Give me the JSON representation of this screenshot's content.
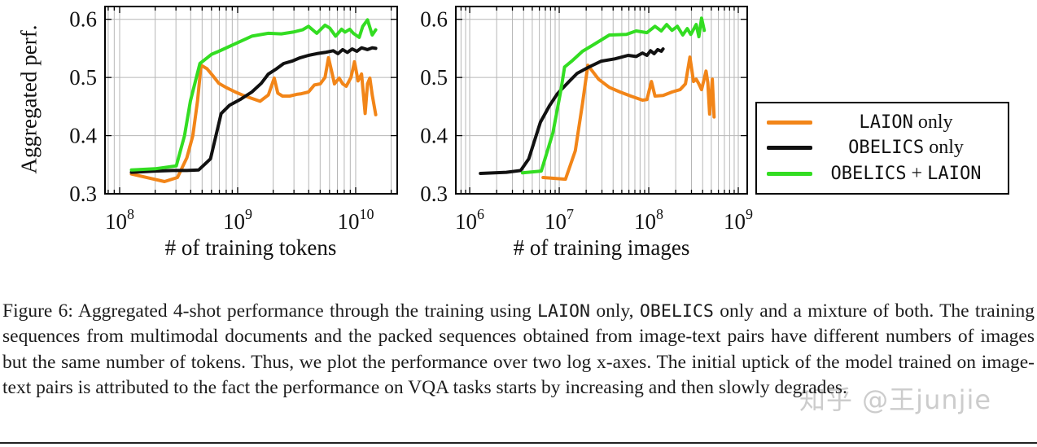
{
  "ylabel": "Aggregated perf.",
  "chart_data": [
    {
      "type": "line",
      "x_scale": "log10",
      "xlabel": "# of training tokens",
      "ylabel": "Aggregated perf.",
      "x_range_log10": [
        7.876,
        10.352
      ],
      "y_range": [
        0.3,
        0.622
      ],
      "x_tick_exponents": [
        8,
        9,
        10
      ],
      "y_ticks": [
        0.3,
        0.4,
        0.5,
        0.6
      ],
      "grid": "vertical log minor+major, horizontal major",
      "legend_position": "outside right",
      "series": [
        {
          "name": "LAION only",
          "color": "#f28518",
          "points": [
            [
              8.1,
              0.334
            ],
            [
              8.25,
              0.327
            ],
            [
              8.38,
              0.321
            ],
            [
              8.49,
              0.328
            ],
            [
              8.57,
              0.362
            ],
            [
              8.62,
              0.4
            ],
            [
              8.66,
              0.46
            ],
            [
              8.69,
              0.521
            ],
            [
              8.74,
              0.515
            ],
            [
              8.79,
              0.503
            ],
            [
              8.84,
              0.49
            ],
            [
              8.9,
              0.483
            ],
            [
              8.98,
              0.475
            ],
            [
              9.05,
              0.469
            ],
            [
              9.12,
              0.464
            ],
            [
              9.19,
              0.459
            ],
            [
              9.26,
              0.47
            ],
            [
              9.31,
              0.499
            ],
            [
              9.34,
              0.473
            ],
            [
              9.38,
              0.468
            ],
            [
              9.44,
              0.468
            ],
            [
              9.5,
              0.471
            ],
            [
              9.54,
              0.472
            ],
            [
              9.6,
              0.475
            ],
            [
              9.65,
              0.487
            ],
            [
              9.7,
              0.489
            ],
            [
              9.74,
              0.5
            ],
            [
              9.77,
              0.534
            ],
            [
              9.8,
              0.507
            ],
            [
              9.82,
              0.489
            ],
            [
              9.86,
              0.499
            ],
            [
              9.89,
              0.489
            ],
            [
              9.92,
              0.485
            ],
            [
              9.96,
              0.5
            ],
            [
              9.99,
              0.527
            ],
            [
              10.02,
              0.494
            ],
            [
              10.05,
              0.506
            ],
            [
              10.08,
              0.438
            ],
            [
              10.1,
              0.489
            ],
            [
              10.12,
              0.499
            ],
            [
              10.14,
              0.47
            ],
            [
              10.17,
              0.436
            ]
          ]
        },
        {
          "name": "OBELICS only",
          "color": "#111111",
          "points": [
            [
              8.1,
              0.337
            ],
            [
              8.3,
              0.339
            ],
            [
              8.45,
              0.34
            ],
            [
              8.57,
              0.34
            ],
            [
              8.67,
              0.341
            ],
            [
              8.77,
              0.36
            ],
            [
              8.86,
              0.438
            ],
            [
              8.93,
              0.452
            ],
            [
              9.02,
              0.462
            ],
            [
              9.12,
              0.475
            ],
            [
              9.2,
              0.49
            ],
            [
              9.26,
              0.506
            ],
            [
              9.33,
              0.515
            ],
            [
              9.39,
              0.524
            ],
            [
              9.46,
              0.528
            ],
            [
              9.53,
              0.534
            ],
            [
              9.6,
              0.538
            ],
            [
              9.67,
              0.541
            ],
            [
              9.74,
              0.543
            ],
            [
              9.81,
              0.546
            ],
            [
              9.85,
              0.541
            ],
            [
              9.89,
              0.548
            ],
            [
              9.93,
              0.543
            ],
            [
              9.97,
              0.549
            ],
            [
              10.01,
              0.545
            ],
            [
              10.05,
              0.551
            ],
            [
              10.1,
              0.548
            ],
            [
              10.14,
              0.551
            ],
            [
              10.17,
              0.55
            ]
          ]
        },
        {
          "name": "OBELICS + LAION",
          "color": "#33dd22",
          "points": [
            [
              8.1,
              0.341
            ],
            [
              8.3,
              0.343
            ],
            [
              8.48,
              0.348
            ],
            [
              8.55,
              0.4
            ],
            [
              8.6,
              0.46
            ],
            [
              8.68,
              0.524
            ],
            [
              8.78,
              0.54
            ],
            [
              8.84,
              0.545
            ],
            [
              8.98,
              0.558
            ],
            [
              9.12,
              0.571
            ],
            [
              9.26,
              0.576
            ],
            [
              9.37,
              0.575
            ],
            [
              9.47,
              0.578
            ],
            [
              9.55,
              0.582
            ],
            [
              9.6,
              0.588
            ],
            [
              9.67,
              0.576
            ],
            [
              9.74,
              0.59
            ],
            [
              9.78,
              0.585
            ],
            [
              9.83,
              0.571
            ],
            [
              9.88,
              0.583
            ],
            [
              9.91,
              0.578
            ],
            [
              9.95,
              0.583
            ],
            [
              9.98,
              0.576
            ],
            [
              10.03,
              0.569
            ],
            [
              10.06,
              0.588
            ],
            [
              10.1,
              0.599
            ],
            [
              10.14,
              0.573
            ],
            [
              10.17,
              0.582
            ]
          ]
        }
      ]
    },
    {
      "type": "line",
      "x_scale": "log10",
      "xlabel": "# of training images",
      "ylabel": "Aggregated perf.",
      "x_range_log10": [
        5.845,
        9.1
      ],
      "y_range": [
        0.3,
        0.622
      ],
      "x_tick_exponents": [
        6,
        7,
        8,
        9
      ],
      "y_ticks": [
        0.3,
        0.4,
        0.5,
        0.6
      ],
      "grid": "vertical log minor+major, horizontal major",
      "legend_position": "outside right",
      "series": [
        {
          "name": "LAION only",
          "color": "#f28518",
          "points": [
            [
              6.82,
              0.328
            ],
            [
              7.07,
              0.325
            ],
            [
              7.18,
              0.374
            ],
            [
              7.26,
              0.455
            ],
            [
              7.32,
              0.521
            ],
            [
              7.44,
              0.497
            ],
            [
              7.56,
              0.483
            ],
            [
              7.68,
              0.475
            ],
            [
              7.8,
              0.468
            ],
            [
              7.93,
              0.461
            ],
            [
              7.98,
              0.462
            ],
            [
              8.03,
              0.493
            ],
            [
              8.07,
              0.468
            ],
            [
              8.16,
              0.469
            ],
            [
              8.26,
              0.475
            ],
            [
              8.35,
              0.479
            ],
            [
              8.41,
              0.489
            ],
            [
              8.46,
              0.535
            ],
            [
              8.5,
              0.493
            ],
            [
              8.53,
              0.497
            ],
            [
              8.56,
              0.489
            ],
            [
              8.59,
              0.479
            ],
            [
              8.64,
              0.511
            ],
            [
              8.66,
              0.491
            ],
            [
              8.68,
              0.437
            ],
            [
              8.71,
              0.497
            ],
            [
              8.73,
              0.432
            ]
          ]
        },
        {
          "name": "OBELICS only",
          "color": "#111111",
          "points": [
            [
              6.12,
              0.335
            ],
            [
              6.41,
              0.337
            ],
            [
              6.57,
              0.34
            ],
            [
              6.66,
              0.36
            ],
            [
              6.79,
              0.423
            ],
            [
              6.89,
              0.451
            ],
            [
              6.98,
              0.472
            ],
            [
              7.11,
              0.493
            ],
            [
              7.2,
              0.507
            ],
            [
              7.32,
              0.517
            ],
            [
              7.47,
              0.528
            ],
            [
              7.62,
              0.532
            ],
            [
              7.77,
              0.538
            ],
            [
              7.86,
              0.536
            ],
            [
              7.93,
              0.542
            ],
            [
              7.98,
              0.538
            ],
            [
              8.02,
              0.546
            ],
            [
              8.06,
              0.541
            ],
            [
              8.1,
              0.548
            ],
            [
              8.14,
              0.545
            ],
            [
              8.16,
              0.549
            ]
          ]
        },
        {
          "name": "OBELICS + LAION",
          "color": "#33dd22",
          "points": [
            [
              6.59,
              0.336
            ],
            [
              6.8,
              0.339
            ],
            [
              6.93,
              0.405
            ],
            [
              7.02,
              0.479
            ],
            [
              7.06,
              0.518
            ],
            [
              7.14,
              0.528
            ],
            [
              7.26,
              0.545
            ],
            [
              7.38,
              0.556
            ],
            [
              7.56,
              0.573
            ],
            [
              7.75,
              0.574
            ],
            [
              7.86,
              0.58
            ],
            [
              7.98,
              0.577
            ],
            [
              8.07,
              0.588
            ],
            [
              8.14,
              0.58
            ],
            [
              8.2,
              0.591
            ],
            [
              8.26,
              0.581
            ],
            [
              8.32,
              0.588
            ],
            [
              8.38,
              0.573
            ],
            [
              8.43,
              0.584
            ],
            [
              8.47,
              0.574
            ],
            [
              8.53,
              0.591
            ],
            [
              8.56,
              0.57
            ],
            [
              8.59,
              0.602
            ],
            [
              8.62,
              0.581
            ]
          ]
        }
      ]
    }
  ],
  "legend": {
    "items": [
      {
        "color": "#f28518",
        "segments": [
          {
            "text": "LAION",
            "tt": true
          },
          {
            "text": " only",
            "tt": false
          }
        ]
      },
      {
        "color": "#111111",
        "segments": [
          {
            "text": "OBELICS",
            "tt": true
          },
          {
            "text": " only",
            "tt": false
          }
        ]
      },
      {
        "color": "#33dd22",
        "segments": [
          {
            "text": "OBELICS",
            "tt": true
          },
          {
            "text": " + ",
            "tt": false
          },
          {
            "text": "LAION",
            "tt": true
          }
        ]
      }
    ]
  },
  "caption": {
    "segments": [
      {
        "text": "Figure 6: Aggregated 4-shot performance through the training using ",
        "tt": false
      },
      {
        "text": "LAION",
        "tt": true
      },
      {
        "text": " only, ",
        "tt": false
      },
      {
        "text": "OBELICS",
        "tt": true
      },
      {
        "text": " only and a mixture of both. The training sequences from multimodal documents and the packed sequences obtained from image-text pairs have different numbers of images but the same number of tokens. Thus, we plot the performance over two log x-axes. The initial uptick of the model trained on image-text pairs is attributed to the fact the performance on VQA tasks starts by increasing and then slowly degrades.",
        "tt": false
      }
    ]
  },
  "watermark": {
    "text": "知乎 @王junjie"
  }
}
